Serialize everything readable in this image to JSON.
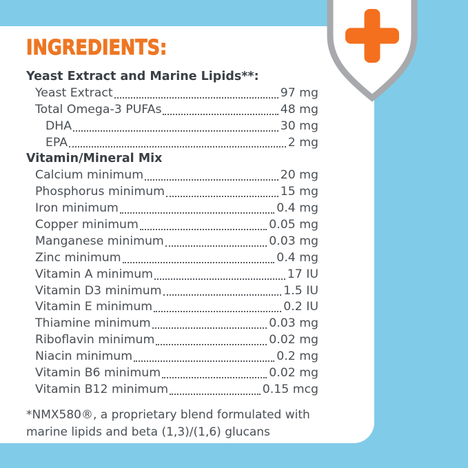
{
  "colors": {
    "background_blue": "#80CBE8",
    "card_white": "#FFFFFF",
    "accent_orange": "#EE7623",
    "plus_orange": "#F4701E",
    "shield_gray": "#A7A9AC",
    "text_dark": "#4A4F54",
    "heading_dark": "#3A3F45"
  },
  "shield": {
    "icon": "shield-with-plus"
  },
  "panel": {
    "title": "INGREDIENTS:",
    "sections": [
      {
        "heading": "Yeast Extract and Marine Lipids**:",
        "rows": [
          {
            "label": "Yeast Extract",
            "value": "97 mg",
            "indent": 1
          },
          {
            "label": "Total Omega-3 PUFAs",
            "value": "48 mg",
            "indent": 1
          },
          {
            "label": "DHA",
            "value": "30 mg",
            "indent": 2
          },
          {
            "label": "EPA",
            "value": "2 mg",
            "indent": 2
          }
        ]
      },
      {
        "heading": "Vitamin/Mineral Mix",
        "rows": [
          {
            "label": "Calcium minimum",
            "value": "20 mg",
            "indent": 1
          },
          {
            "label": "Phosphorus minimum",
            "value": "15 mg",
            "indent": 1
          },
          {
            "label": "Iron minimum",
            "value": "0.4 mg",
            "indent": 1
          },
          {
            "label": "Copper minimum",
            "value": "0.05 mg",
            "indent": 1
          },
          {
            "label": "Manganese minimum",
            "value": "0.03 mg",
            "indent": 1
          },
          {
            "label": "Zinc minimum",
            "value": "0.4 mg",
            "indent": 1
          },
          {
            "label": "Vitamin A minimum",
            "value": "17 IU",
            "indent": 1
          },
          {
            "label": "Vitamin D3 minimum",
            "value": "1.5 IU",
            "indent": 1
          },
          {
            "label": "Vitamin E minimum",
            "value": "0.2 IU",
            "indent": 1
          },
          {
            "label": "Thiamine minimum",
            "value": "0.03 mg",
            "indent": 1
          },
          {
            "label": "Riboflavin minimum",
            "value": "0.02 mg",
            "indent": 1
          },
          {
            "label": "Niacin minimum",
            "value": "0.2 mg",
            "indent": 1
          },
          {
            "label": "Vitamin B6 minimum",
            "value": "0.02 mg",
            "indent": 1
          },
          {
            "label": "Vitamin B12 minimum",
            "value": "0.15 mcg",
            "indent": 1
          }
        ]
      }
    ],
    "footnote_lines": [
      "*NMX580®, a proprietary blend formulated with",
      "marine lipids and beta (1,3)/(1,6) glucans"
    ]
  }
}
